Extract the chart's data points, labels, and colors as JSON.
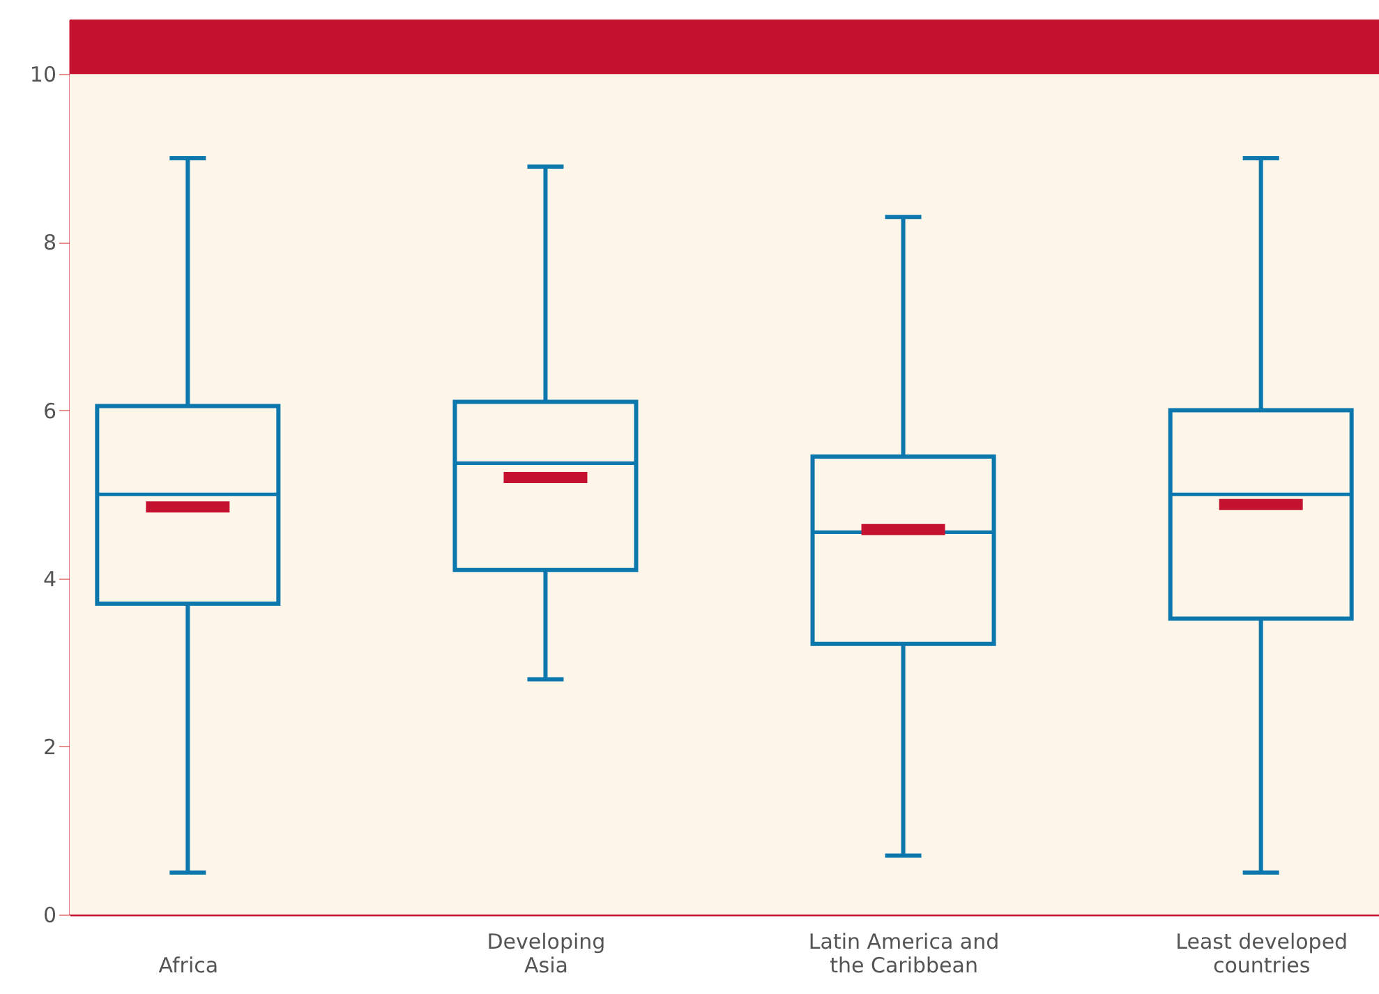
{
  "chart_data": {
    "type": "box",
    "categories": [
      "Africa",
      "Developing Asia",
      "Latin America and the Caribbean",
      "Least developed countries"
    ],
    "series": [
      {
        "color": "#0b77ac",
        "boxes": [
          {
            "low": 0.5,
            "q1": 3.7,
            "median": 5.0,
            "q3": 6.05,
            "high": 9.0,
            "mean": 4.85
          },
          {
            "low": 2.8,
            "q1": 4.1,
            "median": 5.37,
            "q3": 6.1,
            "high": 8.9,
            "mean": 5.2
          },
          {
            "low": 0.7,
            "q1": 3.22,
            "median": 4.55,
            "q3": 5.45,
            "high": 8.3,
            "mean": 4.58
          },
          {
            "low": 0.5,
            "q1": 3.52,
            "median": 5.0,
            "q3": 6.0,
            "high": 9.0,
            "mean": 4.88
          }
        ]
      }
    ],
    "colors": [
      "#0b77ac",
      "#c41230"
    ],
    "ylim": [
      0,
      10.65
    ],
    "yticks": [
      0,
      2,
      4,
      6,
      8,
      10
    ],
    "bands": [
      {
        "axis": "y",
        "from": 10,
        "to": 10.65,
        "label": null,
        "color": "#c41230"
      }
    ]
  }
}
